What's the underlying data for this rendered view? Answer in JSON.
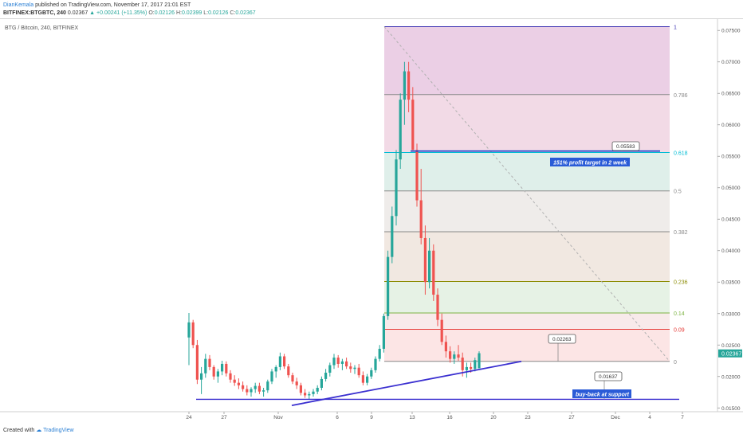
{
  "header": {
    "author": "DianKemala",
    "published": "published on TradingView.com, November 17, 2017 21:01 EST",
    "symbol": "BITFINEX:BTGBTC, 240",
    "last": "0.02367",
    "change": "▲ +0.00241 (+11.35%)",
    "o_label": "O:",
    "o": "0.02126",
    "h_label": "H:",
    "h": "0.02399",
    "l_label": "L:",
    "l": "0.02126",
    "c_label": "C:",
    "c": "0.02367"
  },
  "footer": {
    "created_with": "Created with",
    "brand": "TradingView"
  },
  "chart_data": {
    "type": "candlestick",
    "title": "BTG / Bitcoin, 240, BITFINEX",
    "ylim": [
      0.0144,
      0.0768
    ],
    "x_ticks": [
      "24",
      "27",
      "Nov",
      "6",
      "9",
      "13",
      "16",
      "20",
      "23",
      "27",
      "Dec",
      "4",
      "7"
    ],
    "y_ticks": [
      "0.07500",
      "0.07000",
      "0.06500",
      "0.06000",
      "0.05500",
      "0.05000",
      "0.04500",
      "0.04000",
      "0.03500",
      "0.03000",
      "0.02500",
      "0.02000",
      "0.01500"
    ],
    "last_price_label": "0.02367",
    "fib_levels": [
      {
        "label": "1",
        "value": 0.0756,
        "color": "#3a2fb0"
      },
      {
        "label": "0.786",
        "value": 0.0648,
        "color": "#888888"
      },
      {
        "label": "0.618",
        "value": 0.0556,
        "color": "#00bcd4"
      },
      {
        "label": "0.5",
        "value": 0.0495,
        "color": "#888888"
      },
      {
        "label": "0.382",
        "value": 0.043,
        "color": "#888888"
      },
      {
        "label": "0.236",
        "value": 0.0351,
        "color": "#8a8a00"
      },
      {
        "label": "0.14",
        "value": 0.0301,
        "color": "#7cb342"
      },
      {
        "label": "0.09",
        "value": 0.0275,
        "color": "#e53935"
      },
      {
        "label": "0",
        "value": 0.0224,
        "color": "#888888"
      }
    ],
    "annotations": [
      {
        "price_label": "0.05583",
        "text": "151% profit target in 2 week"
      },
      {
        "price_label": "0.02263",
        "text": ""
      },
      {
        "price_label": "0.01637",
        "text": "buy-back at support"
      }
    ],
    "ohlc": [
      [
        0.0262,
        0.0301,
        0.0218,
        0.0286
      ],
      [
        0.0286,
        0.029,
        0.0245,
        0.025
      ],
      [
        0.025,
        0.0258,
        0.0188,
        0.0195
      ],
      [
        0.0195,
        0.0215,
        0.0172,
        0.0205
      ],
      [
        0.0205,
        0.0236,
        0.0198,
        0.0228
      ],
      [
        0.0228,
        0.0234,
        0.021,
        0.0215
      ],
      [
        0.0215,
        0.0218,
        0.0195,
        0.02
      ],
      [
        0.02,
        0.0212,
        0.019,
        0.0208
      ],
      [
        0.0208,
        0.0225,
        0.0202,
        0.022
      ],
      [
        0.022,
        0.0224,
        0.02,
        0.0205
      ],
      [
        0.0205,
        0.021,
        0.019,
        0.0195
      ],
      [
        0.0195,
        0.0202,
        0.0185,
        0.019
      ],
      [
        0.019,
        0.0197,
        0.018,
        0.0186
      ],
      [
        0.0186,
        0.0192,
        0.0176,
        0.018
      ],
      [
        0.018,
        0.0186,
        0.017,
        0.0175
      ],
      [
        0.0175,
        0.0183,
        0.0168,
        0.018
      ],
      [
        0.018,
        0.019,
        0.0174,
        0.0185
      ],
      [
        0.0185,
        0.019,
        0.0172,
        0.0176
      ],
      [
        0.0176,
        0.0182,
        0.0168,
        0.0178
      ],
      [
        0.0178,
        0.0195,
        0.0174,
        0.0192
      ],
      [
        0.0192,
        0.0212,
        0.0188,
        0.0208
      ],
      [
        0.0208,
        0.0218,
        0.0198,
        0.0215
      ],
      [
        0.0215,
        0.0238,
        0.021,
        0.0232
      ],
      [
        0.0232,
        0.0236,
        0.0212,
        0.0216
      ],
      [
        0.0216,
        0.022,
        0.0198,
        0.0202
      ],
      [
        0.0202,
        0.0206,
        0.0188,
        0.0192
      ],
      [
        0.0192,
        0.0198,
        0.018,
        0.0186
      ],
      [
        0.0186,
        0.019,
        0.017,
        0.0174
      ],
      [
        0.0174,
        0.018,
        0.0166,
        0.017
      ],
      [
        0.017,
        0.0176,
        0.0164,
        0.0172
      ],
      [
        0.0172,
        0.018,
        0.0168,
        0.0176
      ],
      [
        0.0176,
        0.0186,
        0.0172,
        0.0182
      ],
      [
        0.0182,
        0.02,
        0.0178,
        0.0196
      ],
      [
        0.0196,
        0.0212,
        0.0192,
        0.0206
      ],
      [
        0.0206,
        0.0222,
        0.02,
        0.0218
      ],
      [
        0.0218,
        0.0236,
        0.0212,
        0.023
      ],
      [
        0.023,
        0.0234,
        0.0214,
        0.022
      ],
      [
        0.022,
        0.0228,
        0.021,
        0.0224
      ],
      [
        0.0224,
        0.023,
        0.0212,
        0.0216
      ],
      [
        0.0216,
        0.0222,
        0.0206,
        0.0212
      ],
      [
        0.0212,
        0.0218,
        0.0204,
        0.0214
      ],
      [
        0.0214,
        0.022,
        0.0198,
        0.0202
      ],
      [
        0.0202,
        0.0208,
        0.0186,
        0.019
      ],
      [
        0.019,
        0.0204,
        0.0186,
        0.02
      ],
      [
        0.02,
        0.0214,
        0.0196,
        0.021
      ],
      [
        0.021,
        0.0232,
        0.0206,
        0.0228
      ],
      [
        0.0228,
        0.025,
        0.0224,
        0.0244
      ],
      [
        0.0244,
        0.03,
        0.0238,
        0.0296
      ],
      [
        0.0296,
        0.04,
        0.029,
        0.039
      ],
      [
        0.039,
        0.047,
        0.038,
        0.0455
      ],
      [
        0.0455,
        0.056,
        0.044,
        0.0545
      ],
      [
        0.0545,
        0.065,
        0.053,
        0.064
      ],
      [
        0.064,
        0.07,
        0.06,
        0.0685
      ],
      [
        0.0685,
        0.07,
        0.062,
        0.064
      ],
      [
        0.064,
        0.066,
        0.056,
        0.056
      ],
      [
        0.056,
        0.057,
        0.047,
        0.048
      ],
      [
        0.048,
        0.053,
        0.041,
        0.042
      ],
      [
        0.042,
        0.044,
        0.033,
        0.035
      ],
      [
        0.035,
        0.042,
        0.034,
        0.04
      ],
      [
        0.04,
        0.041,
        0.032,
        0.033
      ],
      [
        0.033,
        0.034,
        0.028,
        0.029
      ],
      [
        0.029,
        0.03,
        0.025,
        0.0255
      ],
      [
        0.0255,
        0.0265,
        0.023,
        0.024
      ],
      [
        0.024,
        0.0248,
        0.0222,
        0.0228
      ],
      [
        0.0228,
        0.024,
        0.022,
        0.0235
      ],
      [
        0.0235,
        0.025,
        0.0225,
        0.023
      ],
      [
        0.023,
        0.0238,
        0.02,
        0.021
      ],
      [
        0.021,
        0.0222,
        0.0198,
        0.0215
      ],
      [
        0.0215,
        0.0222,
        0.0206,
        0.0212
      ],
      [
        0.0212,
        0.023,
        0.0208,
        0.0226
      ],
      [
        0.0213,
        0.024,
        0.0213,
        0.0237
      ]
    ]
  }
}
